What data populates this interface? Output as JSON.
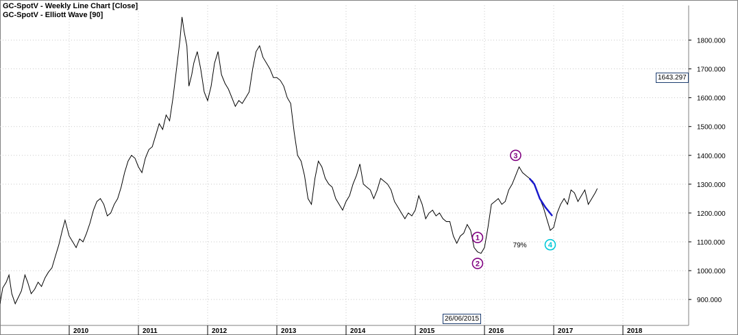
{
  "header": {
    "line1": "GC-SpotV - Weekly Line Chart [Close]",
    "line2": "GC-SpotV - Elliott Wave [90]"
  },
  "last_value_label": "1643.297",
  "cursor_date_label": "26/06/2015",
  "colors": {
    "price_line": "#000000",
    "wave_marker": "#800080",
    "wave4_marker": "#00c8d8",
    "projection_line": "#1a1acc",
    "grid": "#c8c8c8"
  },
  "chart_data": {
    "type": "line",
    "title": "GC-SpotV - Weekly Line Chart [Close]",
    "xlabel": "",
    "ylabel": "",
    "grid": true,
    "ylim": [
      810,
      1920
    ],
    "xlim": [
      2009.0,
      2018.95
    ],
    "y_ticks": [
      900,
      1000,
      1100,
      1200,
      1300,
      1400,
      1500,
      1600,
      1700,
      1800
    ],
    "y_tick_labels": [
      "900.000",
      "1000.000",
      "1100.000",
      "1200.000",
      "1300.000",
      "1400.000",
      "1500.000",
      "1600.000",
      "1700.000",
      "1800.000"
    ],
    "x_tick_labels": [
      "2010",
      "2011",
      "2012",
      "2013",
      "2014",
      "2015",
      "2016",
      "2017",
      "2018"
    ],
    "x_tick_years": [
      2010,
      2011,
      2012,
      2013,
      2014,
      2015,
      2016,
      2017,
      2018
    ],
    "series": [
      {
        "points": [
          [
            2009.0,
            885
          ],
          [
            2009.04,
            940
          ],
          [
            2009.09,
            960
          ],
          [
            2009.13,
            985
          ],
          [
            2009.17,
            920
          ],
          [
            2009.22,
            885
          ],
          [
            2009.27,
            910
          ],
          [
            2009.31,
            930
          ],
          [
            2009.36,
            985
          ],
          [
            2009.4,
            960
          ],
          [
            2009.45,
            920
          ],
          [
            2009.5,
            935
          ],
          [
            2009.55,
            960
          ],
          [
            2009.6,
            945
          ],
          [
            2009.65,
            975
          ],
          [
            2009.7,
            995
          ],
          [
            2009.75,
            1010
          ],
          [
            2009.8,
            1050
          ],
          [
            2009.85,
            1090
          ],
          [
            2009.9,
            1140
          ],
          [
            2009.94,
            1175
          ],
          [
            2010.0,
            1120
          ],
          [
            2010.05,
            1100
          ],
          [
            2010.1,
            1080
          ],
          [
            2010.15,
            1110
          ],
          [
            2010.2,
            1100
          ],
          [
            2010.25,
            1130
          ],
          [
            2010.3,
            1165
          ],
          [
            2010.35,
            1210
          ],
          [
            2010.4,
            1240
          ],
          [
            2010.45,
            1250
          ],
          [
            2010.5,
            1230
          ],
          [
            2010.55,
            1190
          ],
          [
            2010.6,
            1200
          ],
          [
            2010.65,
            1230
          ],
          [
            2010.7,
            1250
          ],
          [
            2010.75,
            1290
          ],
          [
            2010.8,
            1340
          ],
          [
            2010.85,
            1380
          ],
          [
            2010.9,
            1400
          ],
          [
            2010.95,
            1390
          ],
          [
            2011.0,
            1360
          ],
          [
            2011.05,
            1340
          ],
          [
            2011.1,
            1390
          ],
          [
            2011.15,
            1420
          ],
          [
            2011.2,
            1430
          ],
          [
            2011.25,
            1470
          ],
          [
            2011.3,
            1510
          ],
          [
            2011.35,
            1490
          ],
          [
            2011.4,
            1540
          ],
          [
            2011.45,
            1520
          ],
          [
            2011.5,
            1600
          ],
          [
            2011.55,
            1700
          ],
          [
            2011.6,
            1800
          ],
          [
            2011.63,
            1880
          ],
          [
            2011.66,
            1830
          ],
          [
            2011.7,
            1780
          ],
          [
            2011.73,
            1640
          ],
          [
            2011.77,
            1680
          ],
          [
            2011.8,
            1720
          ],
          [
            2011.85,
            1760
          ],
          [
            2011.9,
            1700
          ],
          [
            2011.95,
            1620
          ],
          [
            2012.0,
            1590
          ],
          [
            2012.05,
            1640
          ],
          [
            2012.1,
            1720
          ],
          [
            2012.15,
            1760
          ],
          [
            2012.2,
            1680
          ],
          [
            2012.25,
            1650
          ],
          [
            2012.3,
            1630
          ],
          [
            2012.35,
            1600
          ],
          [
            2012.4,
            1570
          ],
          [
            2012.45,
            1590
          ],
          [
            2012.5,
            1580
          ],
          [
            2012.55,
            1600
          ],
          [
            2012.6,
            1620
          ],
          [
            2012.65,
            1700
          ],
          [
            2012.7,
            1760
          ],
          [
            2012.75,
            1780
          ],
          [
            2012.8,
            1740
          ],
          [
            2012.85,
            1720
          ],
          [
            2012.9,
            1700
          ],
          [
            2012.95,
            1670
          ],
          [
            2013.0,
            1670
          ],
          [
            2013.05,
            1660
          ],
          [
            2013.1,
            1640
          ],
          [
            2013.15,
            1600
          ],
          [
            2013.2,
            1580
          ],
          [
            2013.25,
            1480
          ],
          [
            2013.3,
            1400
          ],
          [
            2013.35,
            1380
          ],
          [
            2013.4,
            1330
          ],
          [
            2013.45,
            1250
          ],
          [
            2013.5,
            1230
          ],
          [
            2013.55,
            1320
          ],
          [
            2013.6,
            1380
          ],
          [
            2013.65,
            1360
          ],
          [
            2013.7,
            1320
          ],
          [
            2013.75,
            1300
          ],
          [
            2013.8,
            1290
          ],
          [
            2013.85,
            1250
          ],
          [
            2013.9,
            1230
          ],
          [
            2013.95,
            1210
          ],
          [
            2014.0,
            1240
          ],
          [
            2014.05,
            1260
          ],
          [
            2014.1,
            1300
          ],
          [
            2014.15,
            1330
          ],
          [
            2014.2,
            1370
          ],
          [
            2014.25,
            1300
          ],
          [
            2014.3,
            1290
          ],
          [
            2014.35,
            1280
          ],
          [
            2014.4,
            1250
          ],
          [
            2014.45,
            1280
          ],
          [
            2014.5,
            1320
          ],
          [
            2014.55,
            1310
          ],
          [
            2014.6,
            1300
          ],
          [
            2014.65,
            1280
          ],
          [
            2014.7,
            1240
          ],
          [
            2014.75,
            1220
          ],
          [
            2014.8,
            1200
          ],
          [
            2014.85,
            1180
          ],
          [
            2014.9,
            1200
          ],
          [
            2014.95,
            1190
          ],
          [
            2015.0,
            1210
          ],
          [
            2015.05,
            1260
          ],
          [
            2015.1,
            1230
          ],
          [
            2015.15,
            1180
          ],
          [
            2015.2,
            1200
          ],
          [
            2015.25,
            1210
          ],
          [
            2015.3,
            1190
          ],
          [
            2015.35,
            1200
          ],
          [
            2015.4,
            1180
          ],
          [
            2015.45,
            1170
          ],
          [
            2015.5,
            1170
          ],
          [
            2015.55,
            1120
          ],
          [
            2015.6,
            1095
          ],
          [
            2015.65,
            1120
          ],
          [
            2015.7,
            1130
          ],
          [
            2015.75,
            1160
          ],
          [
            2015.8,
            1140
          ],
          [
            2015.85,
            1080
          ],
          [
            2015.9,
            1065
          ],
          [
            2015.95,
            1060
          ],
          [
            2016.0,
            1080
          ],
          [
            2016.05,
            1150
          ],
          [
            2016.1,
            1230
          ],
          [
            2016.15,
            1240
          ],
          [
            2016.2,
            1250
          ],
          [
            2016.25,
            1230
          ],
          [
            2016.3,
            1240
          ],
          [
            2016.35,
            1280
          ],
          [
            2016.4,
            1300
          ],
          [
            2016.45,
            1330
          ],
          [
            2016.5,
            1360
          ],
          [
            2016.55,
            1340
          ],
          [
            2016.6,
            1330
          ],
          [
            2016.65,
            1320
          ],
          [
            2016.7,
            1310
          ],
          [
            2016.75,
            1280
          ],
          [
            2016.8,
            1250
          ],
          [
            2016.85,
            1220
          ],
          [
            2016.9,
            1180
          ],
          [
            2016.95,
            1140
          ],
          [
            2017.0,
            1150
          ],
          [
            2017.05,
            1200
          ],
          [
            2017.1,
            1230
          ],
          [
            2017.15,
            1250
          ],
          [
            2017.2,
            1230
          ],
          [
            2017.25,
            1280
          ],
          [
            2017.3,
            1270
          ],
          [
            2017.35,
            1240
          ],
          [
            2017.4,
            1260
          ],
          [
            2017.45,
            1280
          ],
          [
            2017.5,
            1230
          ],
          [
            2017.55,
            1250
          ],
          [
            2017.6,
            1270
          ],
          [
            2017.63,
            1285
          ]
        ]
      }
    ],
    "projection": [
      [
        2016.65,
        1320
      ],
      [
        2016.72,
        1300
      ],
      [
        2016.8,
        1250
      ],
      [
        2016.88,
        1220
      ],
      [
        2016.98,
        1190
      ]
    ],
    "annotations": [
      {
        "label": "1",
        "x": 2015.9,
        "y": 1115,
        "kind": "wave"
      },
      {
        "label": "2",
        "x": 2015.9,
        "y": 1025,
        "kind": "wave"
      },
      {
        "label": "3",
        "x": 2016.45,
        "y": 1400,
        "kind": "wave"
      },
      {
        "label": "4",
        "x": 2016.95,
        "y": 1090,
        "kind": "wave4"
      },
      {
        "label": "79%",
        "x": 2016.65,
        "y": 1090,
        "kind": "percent"
      }
    ]
  }
}
